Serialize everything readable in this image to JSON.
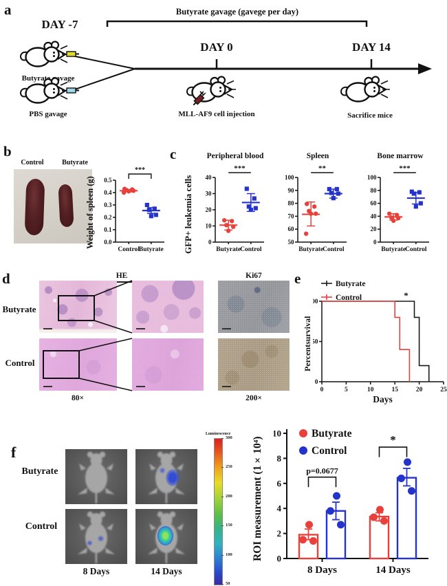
{
  "figure": {
    "background": "#ffffff",
    "colors": {
      "red": "#e8413c",
      "blue": "#2433cb",
      "black": "#1a1a1a",
      "yellow_syringe": "#dedb2e",
      "blue_syringe": "#9fd7e8",
      "dark_red_syringe": "#7a2023"
    }
  },
  "panel_a": {
    "label": "a",
    "bracket_title": "Butyrate gavage (gavege per day)",
    "day_minus_7": "DAY -7",
    "day_0": "DAY 0",
    "day_14": "DAY 14",
    "butyrate_mouse_label": "Butyrate gavage",
    "pbs_mouse_label": "PBS gavage",
    "day0_caption": "MLL-AF9 cell injection",
    "day14_caption": "Sacrifice mice"
  },
  "panel_b": {
    "label": "b",
    "photo_labels": [
      "Control",
      "Butyrate"
    ]
  },
  "panel_c": {
    "label": "c"
  },
  "panel_d": {
    "label": "d",
    "he_header": "HE",
    "ki67_header": "Ki67",
    "row_labels": [
      "Butyrate",
      "Control"
    ],
    "mag_left": "80×",
    "mag_right": "200×"
  },
  "panel_e": {
    "label": "e"
  },
  "panel_f": {
    "label": "f",
    "row_labels": [
      "Butyrate",
      "Control"
    ],
    "col_labels": [
      "8 Days",
      "14 Days"
    ],
    "colorbar": {
      "title": "Luminescence",
      "ticks": [
        "300",
        "250",
        "200",
        "150",
        "100",
        "50"
      ]
    }
  },
  "panel_f_images": [
    {
      "group": "Butyrate",
      "day": "8 Days",
      "signal": "none"
    },
    {
      "group": "Butyrate",
      "day": "14 Days",
      "signal": "blue-medium"
    },
    {
      "group": "Control",
      "day": "8 Days",
      "signal": "blue-small"
    },
    {
      "group": "Control",
      "day": "14 Days",
      "signal": "green-strong"
    }
  ],
  "chart_data": [
    {
      "id": "chart-b",
      "panel": "b",
      "type": "scatter",
      "title": "",
      "ylabel": "Weight of spleen (g)",
      "ylim": [
        0,
        0.5
      ],
      "yticks": [
        0,
        0.1,
        0.2,
        0.3,
        0.4,
        0.5
      ],
      "ydecimals": 1,
      "significance": "***",
      "sig_style": "bracket",
      "groups": [
        {
          "name": "Control",
          "color": "#e8413c",
          "marker": "circle",
          "values": [
            0.43,
            0.425,
            0.42,
            0.415,
            0.41,
            0.4
          ],
          "mean": 0.415,
          "error": [
            0.406,
            0.424
          ]
        },
        {
          "name": "Butyrate",
          "color": "#2433cb",
          "marker": "square",
          "values": [
            0.3,
            0.27,
            0.26,
            0.22,
            0.21
          ],
          "mean": 0.255,
          "error": [
            0.232,
            0.278
          ]
        }
      ]
    },
    {
      "id": "chart-c1",
      "panel": "c",
      "type": "scatter",
      "title": "Peripheral blood",
      "ylabel": "GFP+ leukemia cells",
      "ylim": [
        0,
        40
      ],
      "yticks": [
        0,
        10,
        20,
        30,
        40
      ],
      "significance": "***",
      "sig_style": "line",
      "groups": [
        {
          "name": "Butyrate",
          "color": "#e8413c",
          "marker": "circle",
          "values": [
            13.5,
            13,
            10.5,
            9.5,
            7
          ],
          "mean": 10.5,
          "error": [
            7.5,
            13.5
          ]
        },
        {
          "name": "Control",
          "color": "#2433cb",
          "marker": "square",
          "values": [
            33,
            27,
            22,
            21,
            20
          ],
          "mean": 24.5,
          "error": [
            19,
            30
          ]
        }
      ]
    },
    {
      "id": "chart-c2",
      "panel": "c",
      "type": "scatter",
      "title": "Spleen",
      "ylim": [
        50,
        100
      ],
      "yticks": [
        50,
        60,
        70,
        80,
        90,
        100
      ],
      "significance": "**",
      "sig_style": "line",
      "groups": [
        {
          "name": "Butyrate",
          "color": "#e8413c",
          "marker": "circle",
          "values": [
            79.5,
            77.5,
            74,
            72,
            72,
            56.5
          ],
          "mean": 71.5,
          "error": [
            62.5,
            81
          ]
        },
        {
          "name": "Control",
          "color": "#2433cb",
          "marker": "square",
          "values": [
            91,
            91,
            88,
            87.5,
            84
          ],
          "mean": 87.5,
          "error": [
            84,
            91
          ]
        }
      ]
    },
    {
      "id": "chart-c3",
      "panel": "c",
      "type": "scatter",
      "title": "Bone marrow",
      "ylim": [
        0,
        100
      ],
      "yticks": [
        0,
        20,
        40,
        60,
        80,
        100
      ],
      "significance": "***",
      "sig_style": "line",
      "groups": [
        {
          "name": "Butyrate",
          "color": "#e8413c",
          "marker": "circle",
          "values": [
            44,
            42,
            38,
            37,
            33
          ],
          "mean": 39,
          "error": [
            34,
            44
          ]
        },
        {
          "name": "Control",
          "color": "#2433cb",
          "marker": "square",
          "values": [
            78,
            77,
            75,
            60,
            55
          ],
          "mean": 68,
          "error": [
            59,
            77
          ]
        }
      ]
    },
    {
      "id": "chart-e",
      "panel": "e",
      "type": "line",
      "ylabel": "Percentsurvival",
      "xlabel": "Days",
      "xlim": [
        0,
        25
      ],
      "xticks": [
        0,
        5,
        10,
        15,
        20,
        25
      ],
      "ylim": [
        0,
        100
      ],
      "yticks": [
        0,
        50,
        100
      ],
      "significance": {
        "text": "*",
        "x": 17.3
      },
      "series": [
        {
          "name": "Butyrate",
          "color": "#1a1a1a",
          "points": [
            [
              0,
              100
            ],
            [
              19,
              100
            ],
            [
              19,
              80
            ],
            [
              20,
              80
            ],
            [
              20,
              20
            ],
            [
              22,
              20
            ],
            [
              22,
              0
            ]
          ]
        },
        {
          "name": "Control",
          "color": "#e8413c",
          "points": [
            [
              0,
              100
            ],
            [
              15,
              100
            ],
            [
              15,
              80
            ],
            [
              16,
              80
            ],
            [
              16,
              40
            ],
            [
              18,
              40
            ],
            [
              18,
              0
            ]
          ]
        }
      ]
    },
    {
      "id": "chart-f",
      "panel": "f",
      "type": "bar",
      "ylabel": "ROI measurement (1×10⁴)",
      "ylim": [
        0,
        10
      ],
      "yticks": [
        0,
        2,
        4,
        6,
        8,
        10
      ],
      "categories": [
        "8 Days",
        "14 Days"
      ],
      "series": [
        {
          "name": "Butyrate",
          "color": "#e8413c",
          "values": [
            1.9,
            3.35
          ],
          "points": [
            [
              2.7,
              1.5,
              1.4
            ],
            [
              3.9,
              3.3,
              3.0
            ]
          ],
          "errors": [
            [
              1.5,
              2.35
            ],
            [
              3.0,
              3.65
            ]
          ]
        },
        {
          "name": "Control",
          "color": "#2433cb",
          "values": [
            3.8,
            6.45
          ],
          "points": [
            [
              5.0,
              3.8,
              2.7
            ],
            [
              7.7,
              6.4,
              5.4
            ]
          ],
          "errors": [
            [
              3.1,
              4.5
            ],
            [
              5.8,
              7.2
            ]
          ]
        }
      ],
      "annotations": [
        {
          "category": "8 Days",
          "text": "p=0.0677",
          "y": 6.5,
          "drop": 0.8
        },
        {
          "category": "14 Days",
          "text": "*",
          "y": 8.9,
          "drop": 0.8
        }
      ]
    }
  ]
}
